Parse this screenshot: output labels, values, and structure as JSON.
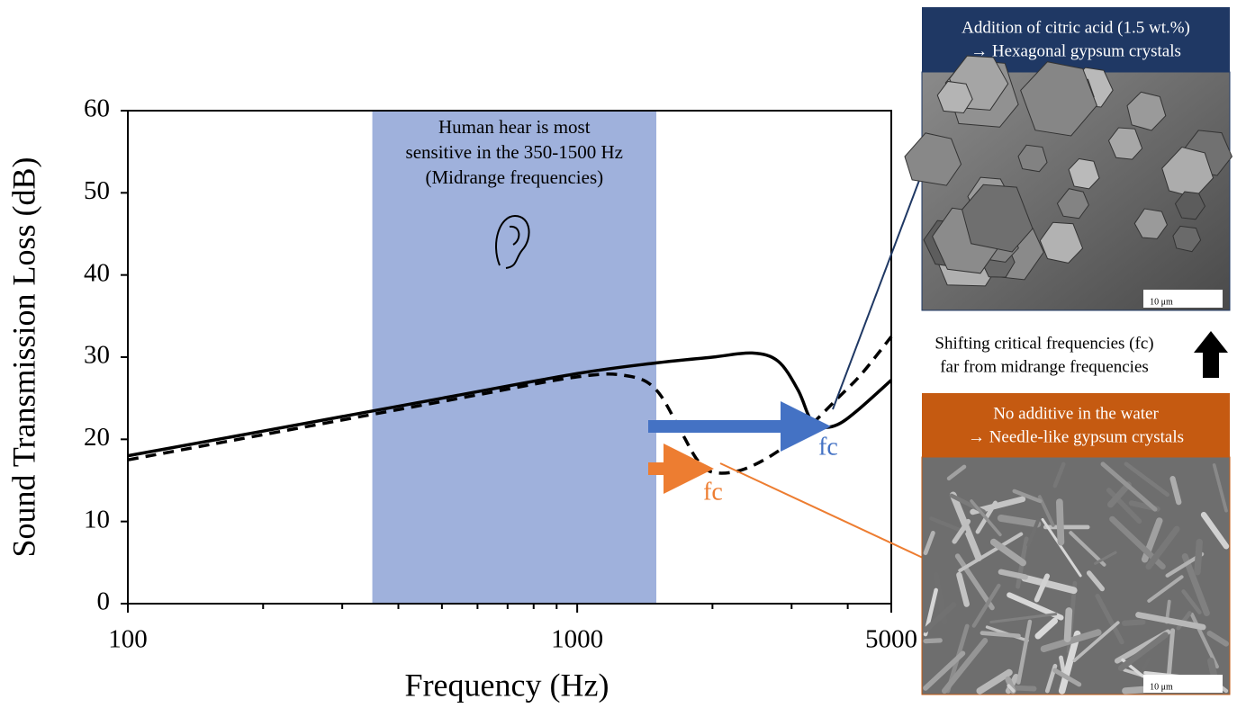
{
  "chart_data": {
    "type": "line",
    "xlabel": "Frequency (Hz)",
    "ylabel": "Sound Transmission Loss (dB)",
    "xlim": [
      100,
      5000
    ],
    "ylim": [
      0,
      60
    ],
    "xticks": [
      100,
      1000,
      5000
    ],
    "xminorticks": [
      200,
      300,
      400,
      500,
      600,
      700,
      800,
      900,
      2000,
      3000,
      4000
    ],
    "yticks": [
      0,
      10,
      20,
      30,
      40,
      50,
      60
    ],
    "xscale": "log",
    "band": {
      "x": [
        350,
        1500
      ],
      "color": "#9fb1dc",
      "text": [
        "Human hear is most",
        "sensitive in the 350-1500 Hz",
        "(Midrange frequencies)"
      ]
    },
    "series": [
      {
        "style": "solid",
        "color": "#000000",
        "x": [
          100,
          200,
          500,
          1000,
          1500,
          2000,
          2450,
          2800,
          3100,
          3300,
          3500,
          3800,
          4200,
          5000
        ],
        "values": [
          18,
          21,
          25,
          28,
          29.3,
          30,
          30.5,
          29.5,
          26,
          22.5,
          21.5,
          21.8,
          23.5,
          27.2
        ]
      },
      {
        "style": "dashed",
        "color": "#000000",
        "x": [
          100,
          500,
          1000,
          1300,
          1500,
          1700,
          1850,
          2000,
          2300,
          2700,
          3200,
          3800,
          4300,
          5000
        ],
        "values": [
          17.5,
          24.6,
          27.6,
          27.7,
          26,
          21,
          17.5,
          16,
          16.2,
          18,
          21,
          25,
          28,
          32.5
        ]
      }
    ],
    "annotations": [
      "fc",
      "fc"
    ],
    "panels": [
      {
        "title": [
          "Addition of citric acid (1.5 wt.%)",
          "→ Hexagonal gypsum crystals"
        ],
        "scale": "10 μm"
      },
      {
        "title": [
          "No additive in the water",
          "→ Needle-like gypsum crystals"
        ],
        "scale": "10 μm"
      }
    ],
    "note": [
      "Shifting critical frequencies (fc)",
      "far from midrange frequencies"
    ]
  }
}
